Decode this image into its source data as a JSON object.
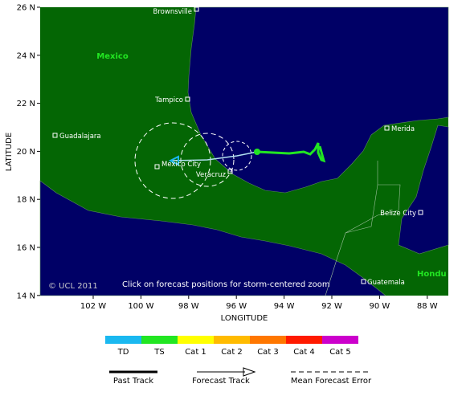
{
  "map": {
    "regions": [
      "Mexico",
      "Hondu"
    ],
    "cities": [
      "Brownsville",
      "Tampico",
      "Guadalajara",
      "Merida",
      "Mexico City",
      "Veracruz",
      "Belize City",
      "Guatemala"
    ],
    "copyright": "© UCL 2011",
    "note": "Click on forecast positions for storm-centered zoom"
  },
  "axes": {
    "y_title": "LATITUDE",
    "x_title": "LONGITUDE",
    "lat_ticks": [
      {
        "value": 26,
        "label": "26 N"
      },
      {
        "value": 24,
        "label": "24 N"
      },
      {
        "value": 22,
        "label": "22 N"
      },
      {
        "value": 20,
        "label": "20 N"
      },
      {
        "value": 18,
        "label": "18 N"
      },
      {
        "value": 16,
        "label": "16 N"
      },
      {
        "value": 14,
        "label": "14 N"
      }
    ],
    "lon_ticks": [
      {
        "value": -102,
        "label": "102 W"
      },
      {
        "value": -100,
        "label": "100 W"
      },
      {
        "value": -98,
        "label": "98 W"
      },
      {
        "value": -96,
        "label": "96 W"
      },
      {
        "value": -94,
        "label": "94 W"
      },
      {
        "value": -92,
        "label": "92 W"
      },
      {
        "value": -90,
        "label": "90 W"
      },
      {
        "value": -88,
        "label": "88 W"
      }
    ]
  },
  "legend": {
    "categories": [
      {
        "label": "TD",
        "color": "#1ab8f0"
      },
      {
        "label": "TS",
        "color": "#22e622"
      },
      {
        "label": "Cat 1",
        "color": "#ffff00"
      },
      {
        "label": "Cat 2",
        "color": "#ffbb00"
      },
      {
        "label": "Cat 3",
        "color": "#ff7700"
      },
      {
        "label": "Cat 4",
        "color": "#ff1a00"
      },
      {
        "label": "Cat 5",
        "color": "#cc00cc"
      }
    ],
    "track_key": [
      "Past Track",
      "Forecast Track",
      "Mean Forecast Error"
    ]
  }
}
